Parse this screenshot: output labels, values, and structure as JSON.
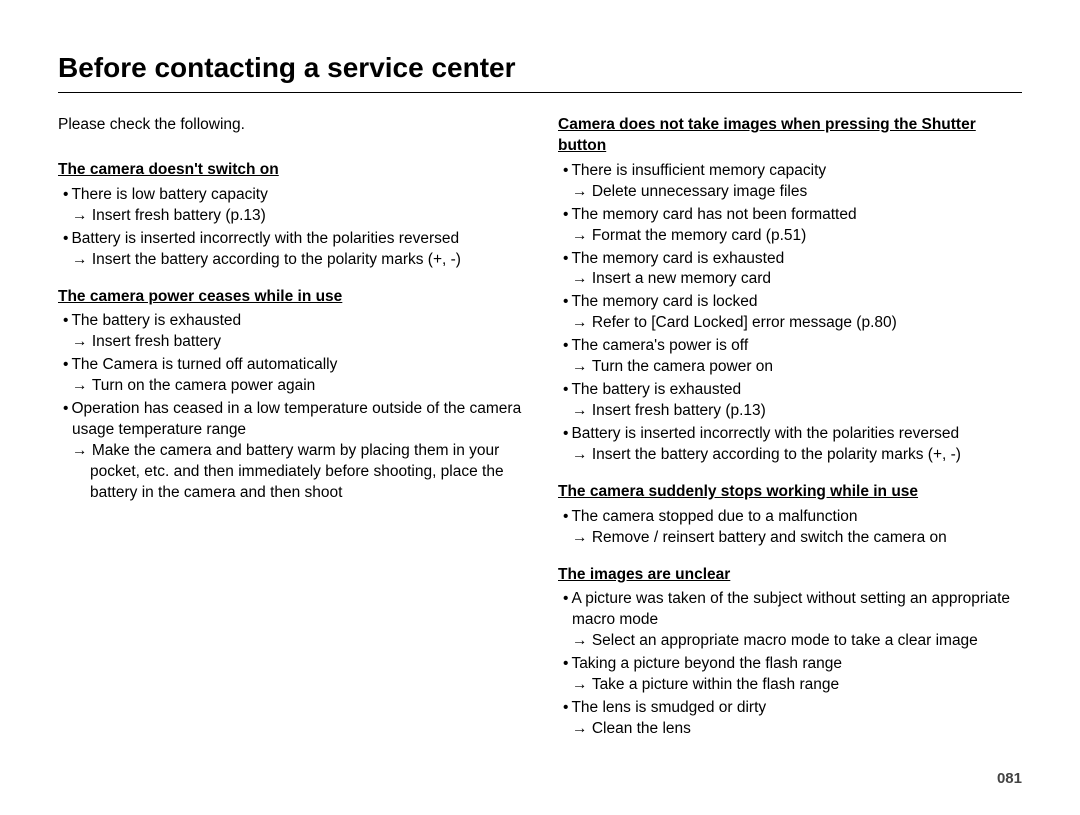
{
  "title": "Before contacting a service center",
  "intro": "Please check the following.",
  "page_number": "081",
  "left": {
    "sections": [
      {
        "heading": "The camera doesn't switch on",
        "items": [
          {
            "cause": "There is low battery capacity",
            "solution": "Insert fresh battery (p.13)"
          },
          {
            "cause": "Battery is inserted incorrectly with the polarities reversed",
            "solution": "Insert the battery according to the polarity marks (+, -)"
          }
        ]
      },
      {
        "heading": "The camera power ceases while in use",
        "items": [
          {
            "cause": "The battery is exhausted",
            "solution": "Insert fresh battery"
          },
          {
            "cause": "The Camera is turned off automatically",
            "solution": "Turn on the camera power again"
          },
          {
            "cause": "Operation has ceased in a low temperature outside of the camera usage temperature range",
            "solution": "Make the camera and battery warm by placing them in your pocket, etc. and then immediately before shooting, place the battery in the camera and then shoot"
          }
        ]
      }
    ]
  },
  "right": {
    "sections": [
      {
        "heading": "Camera does not take images when pressing the Shutter button",
        "items": [
          {
            "cause": "There is insufficient memory capacity",
            "solution": "Delete unnecessary image files"
          },
          {
            "cause": "The memory card has not been formatted",
            "solution": "Format the memory card (p.51)"
          },
          {
            "cause": "The memory card is exhausted",
            "solution": "Insert a new memory card"
          },
          {
            "cause": "The memory card is locked",
            "solution": "Refer to [Card Locked] error message (p.80)"
          },
          {
            "cause": "The camera's power is off",
            "solution": "Turn the camera power on"
          },
          {
            "cause": "The battery is exhausted",
            "solution": "Insert fresh battery (p.13)"
          },
          {
            "cause": "Battery is inserted incorrectly with the polarities reversed",
            "solution": "Insert the battery according to the polarity marks (+, -)"
          }
        ]
      },
      {
        "heading": "The camera suddenly stops working while in use",
        "items": [
          {
            "cause": "The camera stopped due to a malfunction",
            "solution": "Remove / reinsert battery and switch the camera on"
          }
        ]
      },
      {
        "heading": "The images are unclear",
        "items": [
          {
            "cause": "A picture was taken of the subject without setting an appropriate macro mode",
            "solution": "Select an appropriate macro mode to take a clear image"
          },
          {
            "cause": "Taking a picture beyond the flash range",
            "solution": "Take a picture within the flash range"
          },
          {
            "cause": "The lens is smudged or dirty",
            "solution": "Clean the lens"
          }
        ]
      }
    ]
  }
}
